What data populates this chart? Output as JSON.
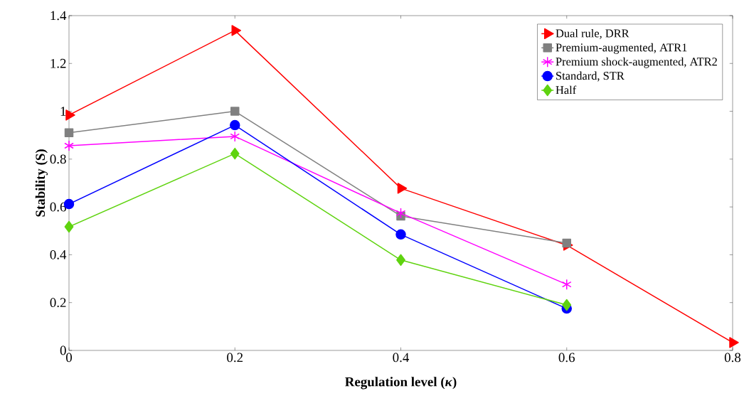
{
  "chart_data": {
    "type": "line",
    "xlabel": "Regulation level (*κ*)",
    "ylabel": "Stability (S)",
    "xlim": [
      0,
      0.8
    ],
    "ylim": [
      0,
      1.4
    ],
    "xticks": [
      0,
      0.2,
      0.4,
      0.6,
      0.8
    ],
    "yticks": [
      0,
      0.2,
      0.4,
      0.6,
      0.8,
      1,
      1.2,
      1.4
    ],
    "x": [
      0,
      0.2,
      0.4,
      0.6,
      0.8
    ],
    "legend": "top right",
    "grid": false,
    "line_style": "solid",
    "series": [
      {
        "name": "Dual rule, DRR",
        "color": "#ff0000",
        "marker": "triangle",
        "values": [
          0.984,
          1.338,
          0.678,
          0.44,
          0.033
        ]
      },
      {
        "name": "Premium-augmented, ATR1",
        "color": "#808080",
        "marker": "square",
        "values": [
          0.91,
          1.0,
          0.562,
          0.449,
          null
        ]
      },
      {
        "name": "Premium shock-augmented, ATR2",
        "color": "#ff00ff",
        "marker": "cross",
        "values": [
          0.856,
          0.895,
          0.574,
          0.276,
          null
        ]
      },
      {
        "name": "Standard, STR",
        "color": "#0000ff",
        "marker": "circle",
        "values": [
          0.612,
          0.942,
          0.485,
          0.175,
          null
        ]
      },
      {
        "name": "Half",
        "color": "#5fd30f",
        "marker": "diamond",
        "values": [
          0.517,
          0.823,
          0.378,
          0.19,
          null
        ]
      }
    ]
  }
}
